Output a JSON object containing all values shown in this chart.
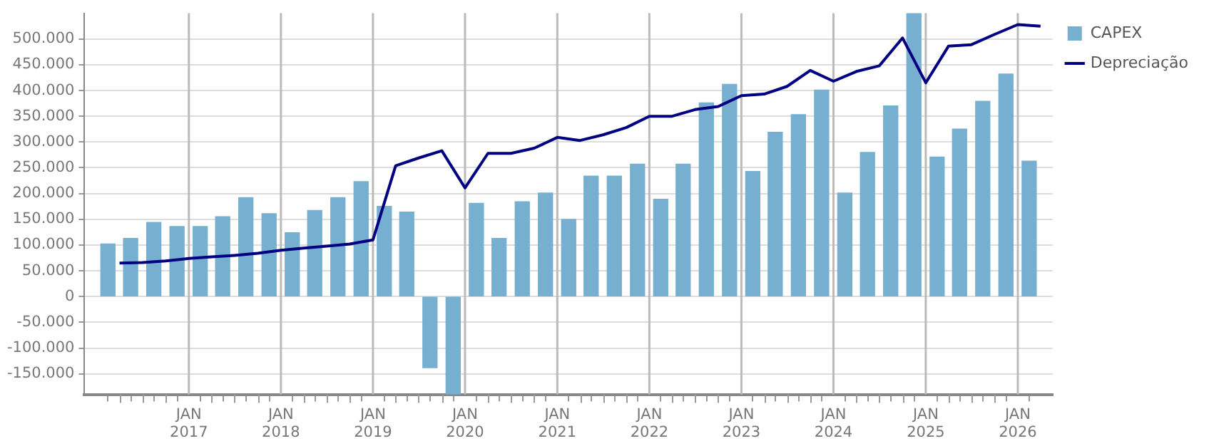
{
  "chart_data": {
    "type": "bar",
    "x": [
      "2016-02-15",
      "2016-05-15",
      "2016-08-15",
      "2016-11-15",
      "2017-02-15",
      "2017-05-15",
      "2017-08-15",
      "2017-11-15",
      "2018-02-15",
      "2018-05-15",
      "2018-08-15",
      "2018-11-15",
      "2019-02-15",
      "2019-05-15",
      "2019-08-15",
      "2019-11-15",
      "2020-02-15",
      "2020-05-15",
      "2020-08-15",
      "2020-11-15",
      "2021-02-15",
      "2021-05-15",
      "2021-08-15",
      "2021-11-15",
      "2022-02-15",
      "2022-05-15",
      "2022-08-15",
      "2022-11-15",
      "2023-02-15",
      "2023-05-15",
      "2023-08-15",
      "2023-11-15",
      "2024-02-15",
      "2024-05-15",
      "2024-08-15",
      "2024-11-15",
      "2025-02-15",
      "2025-05-15",
      "2025-08-15",
      "2025-11-15",
      "2026-02-15"
    ],
    "series": [
      {
        "name": "CAPEX",
        "color": "#77afd0",
        "values": [
          102000,
          113000,
          144000,
          136000,
          136000,
          155000,
          192000,
          161000,
          124000,
          167000,
          192000,
          223000,
          175000,
          164000,
          -138000,
          -190000,
          181000,
          113000,
          184000,
          201000,
          150000,
          234000,
          234000,
          257000,
          189000,
          257000,
          376000,
          412000,
          243000,
          319000,
          353000,
          401000,
          201000,
          280000,
          370000,
          550000,
          271000,
          325000,
          379000,
          432000,
          263000
        ]
      },
      {
        "name": "Depreciação",
        "type": "line",
        "color": "#000080",
        "x": [
          "2016-04-01",
          "2016-07-01",
          "2016-10-01",
          "2017-01-01",
          "2017-04-01",
          "2017-07-01",
          "2017-10-01",
          "2018-01-01",
          "2018-04-01",
          "2018-07-01",
          "2018-10-01",
          "2019-01-01",
          "2019-04-01",
          "2019-07-01",
          "2019-10-01",
          "2020-01-01",
          "2020-04-01",
          "2020-07-01",
          "2020-10-01",
          "2021-01-01",
          "2021-04-01",
          "2021-07-01",
          "2021-10-01",
          "2022-01-01",
          "2022-04-01",
          "2022-07-01",
          "2022-10-01",
          "2023-01-01",
          "2023-04-01",
          "2023-07-01",
          "2023-10-01",
          "2024-01-01",
          "2024-04-01",
          "2024-07-01",
          "2024-10-01",
          "2025-01-01",
          "2025-04-01",
          "2025-07-01",
          "2025-10-01",
          "2026-01-01",
          "2026-04-01"
        ],
        "values": [
          65000,
          66000,
          69000,
          74000,
          77000,
          80000,
          84000,
          90000,
          94000,
          98000,
          102000,
          110000,
          254000,
          269000,
          283000,
          211000,
          278000,
          278000,
          288000,
          309000,
          303000,
          314000,
          328000,
          350000,
          350000,
          363000,
          369000,
          390000,
          393000,
          408000,
          439000,
          418000,
          437000,
          448000,
          502000,
          415000,
          486000,
          489000,
          509000,
          528000,
          525000
        ]
      }
    ],
    "xlim": [
      "2016-01-01",
      "2026-04-01"
    ],
    "xticks": [
      {
        "value": "2016-04-01",
        "label": null
      },
      {
        "value": "2016-07-01",
        "label": null
      },
      {
        "value": "2016-10-01",
        "label": null
      },
      {
        "value": "2017-01-01",
        "label": "JAN\n2017"
      },
      {
        "value": "2017-04-01",
        "label": null
      },
      {
        "value": "2017-07-01",
        "label": null
      },
      {
        "value": "2017-10-01",
        "label": null
      },
      {
        "value": "2018-01-01",
        "label": "JAN\n2018"
      },
      {
        "value": "2018-04-01",
        "label": null
      },
      {
        "value": "2018-07-01",
        "label": null
      },
      {
        "value": "2018-10-01",
        "label": null
      },
      {
        "value": "2019-01-01",
        "label": "JAN\n2019"
      },
      {
        "value": "2019-04-01",
        "label": null
      },
      {
        "value": "2019-07-01",
        "label": null
      },
      {
        "value": "2019-10-01",
        "label": null
      },
      {
        "value": "2020-01-01",
        "label": "JAN\n2020"
      },
      {
        "value": "2020-04-01",
        "label": null
      },
      {
        "value": "2020-07-01",
        "label": null
      },
      {
        "value": "2020-10-01",
        "label": null
      },
      {
        "value": "2021-01-01",
        "label": "JAN\n2021"
      },
      {
        "value": "2021-04-01",
        "label": null
      },
      {
        "value": "2021-07-01",
        "label": null
      },
      {
        "value": "2021-10-01",
        "label": null
      },
      {
        "value": "2022-01-01",
        "label": "JAN\n2022"
      },
      {
        "value": "2022-04-01",
        "label": null
      },
      {
        "value": "2022-07-01",
        "label": null
      },
      {
        "value": "2022-10-01",
        "label": null
      },
      {
        "value": "2023-01-01",
        "label": "JAN\n2023"
      },
      {
        "value": "2023-04-01",
        "label": null
      },
      {
        "value": "2023-07-01",
        "label": null
      },
      {
        "value": "2023-10-01",
        "label": null
      },
      {
        "value": "2024-01-01",
        "label": "JAN\n2024"
      },
      {
        "value": "2024-04-01",
        "label": null
      },
      {
        "value": "2024-07-01",
        "label": null
      },
      {
        "value": "2024-10-01",
        "label": null
      },
      {
        "value": "2025-01-01",
        "label": "JAN\n2025"
      },
      {
        "value": "2025-04-01",
        "label": null
      },
      {
        "value": "2025-07-01",
        "label": null
      },
      {
        "value": "2025-10-01",
        "label": null
      },
      {
        "value": "2026-01-01",
        "label": "JAN\n2026"
      }
    ],
    "ylim": [
      -190000,
      550000
    ],
    "yticks": [
      {
        "value": -150000,
        "label": "-150.000"
      },
      {
        "value": -100000,
        "label": "-100.000"
      },
      {
        "value": -50000,
        "label": "-50.000"
      },
      {
        "value": 0,
        "label": "0"
      },
      {
        "value": 50000,
        "label": "50.000"
      },
      {
        "value": 100000,
        "label": "100.000"
      },
      {
        "value": 150000,
        "label": "150.000"
      },
      {
        "value": 200000,
        "label": "200.000"
      },
      {
        "value": 250000,
        "label": "250.000"
      },
      {
        "value": 300000,
        "label": "300.000"
      },
      {
        "value": 350000,
        "label": "350.000"
      },
      {
        "value": 400000,
        "label": "400.000"
      },
      {
        "value": 450000,
        "label": "450.000"
      },
      {
        "value": 500000,
        "label": "500.000"
      }
    ],
    "grid": true,
    "legend": "top right",
    "marker": "none",
    "line_style": "solid"
  }
}
